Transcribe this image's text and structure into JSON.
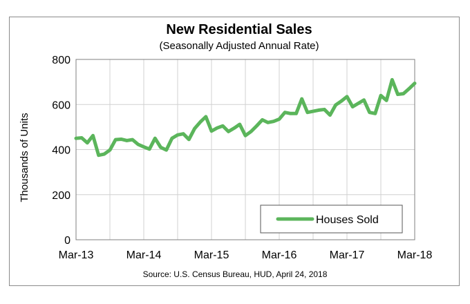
{
  "chart_data": {
    "type": "line",
    "title": "New Residential Sales",
    "subtitle": "(Seasonally Adjusted Annual Rate)",
    "ylabel": "Thousands of Units",
    "xlabel": "",
    "source": "Source:  U.S. Census Bureau, HUD, April 24, 2018",
    "ylim": [
      0,
      800
    ],
    "yticks": [
      0,
      200,
      400,
      600,
      800
    ],
    "xticks": [
      "Mar-13",
      "Mar-14",
      "Mar-15",
      "Mar-16",
      "Mar-17",
      "Mar-18"
    ],
    "grid": true,
    "legend_position": "bottom-right",
    "color": "#5bb55b",
    "series": [
      {
        "name": "Houses Sold",
        "values": [
          450,
          452,
          430,
          462,
          375,
          380,
          398,
          444,
          446,
          440,
          444,
          423,
          412,
          402,
          450,
          410,
          398,
          450,
          465,
          470,
          445,
          493,
          522,
          546,
          482,
          496,
          505,
          480,
          495,
          512,
          462,
          480,
          505,
          532,
          520,
          525,
          535,
          565,
          560,
          560,
          625,
          565,
          570,
          575,
          578,
          553,
          598,
          615,
          635,
          590,
          605,
          620,
          565,
          560,
          640,
          618,
          710,
          645,
          648,
          670,
          694
        ]
      }
    ]
  }
}
